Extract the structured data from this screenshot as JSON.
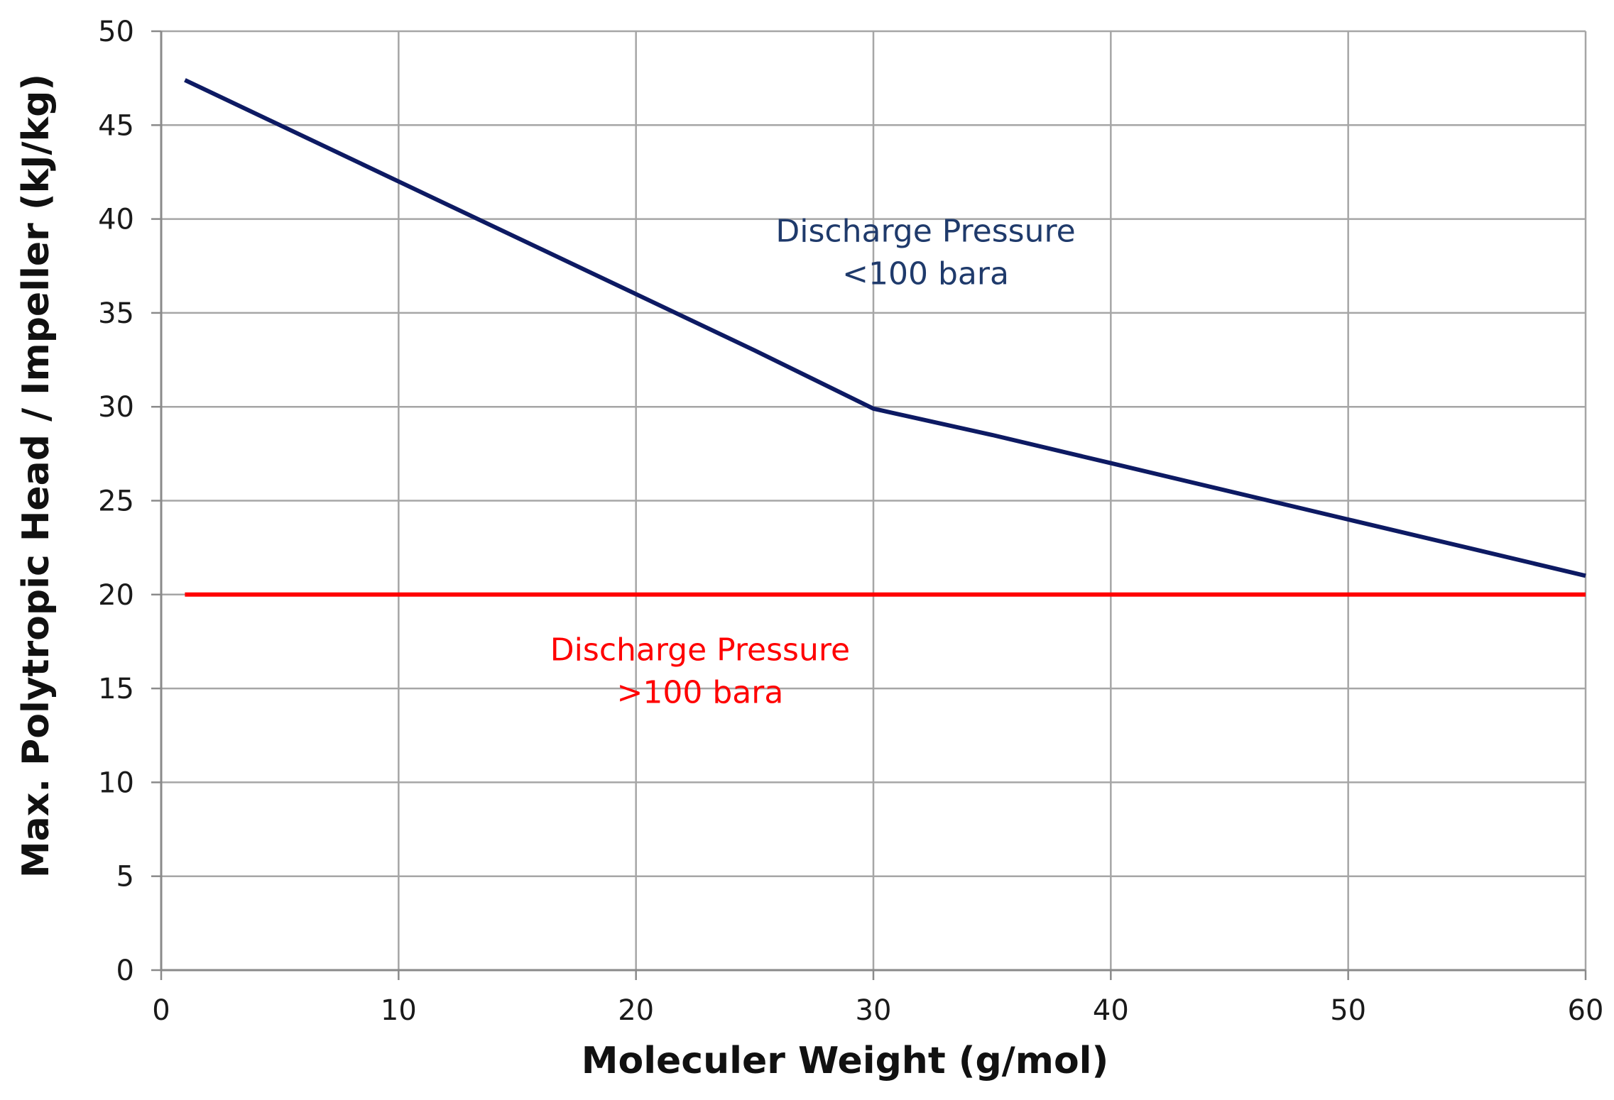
{
  "chart_data": {
    "type": "line",
    "title": "",
    "xlabel": "Moleculer Weight (g/mol)",
    "ylabel": "Max. Polytropic Head / Impeller (kJ/kg)",
    "xlim": [
      0,
      60
    ],
    "ylim": [
      0,
      50
    ],
    "x_ticks": [
      0,
      10,
      20,
      30,
      40,
      50,
      60
    ],
    "y_ticks": [
      0,
      5,
      10,
      15,
      20,
      25,
      30,
      35,
      40,
      45,
      50
    ],
    "grid": true,
    "legend": "none",
    "series": [
      {
        "name": "Discharge Pressure <100 bara",
        "color": "#0d1a63",
        "x": [
          1,
          5,
          10,
          15,
          20,
          25,
          30,
          35,
          40,
          45,
          50,
          55,
          60
        ],
        "y": [
          47.4,
          45.0,
          42.0,
          39.0,
          36.0,
          33.0,
          29.9,
          28.5,
          27.0,
          25.5,
          24.0,
          22.5,
          21.0
        ]
      },
      {
        "name": "Discharge Pressure >100 bara",
        "color": "#ff0000",
        "x": [
          1,
          60
        ],
        "y": [
          20,
          20
        ]
      }
    ],
    "annotations": [
      {
        "line1": "Discharge Pressure",
        "line2": "<100 bara",
        "color": "#1f3a6b",
        "x": 32.2,
        "y": 38.5
      },
      {
        "line1": "Discharge Pressure",
        "line2": ">100 bara",
        "color": "#ff0000",
        "x": 22.7,
        "y": 16.2
      }
    ]
  }
}
